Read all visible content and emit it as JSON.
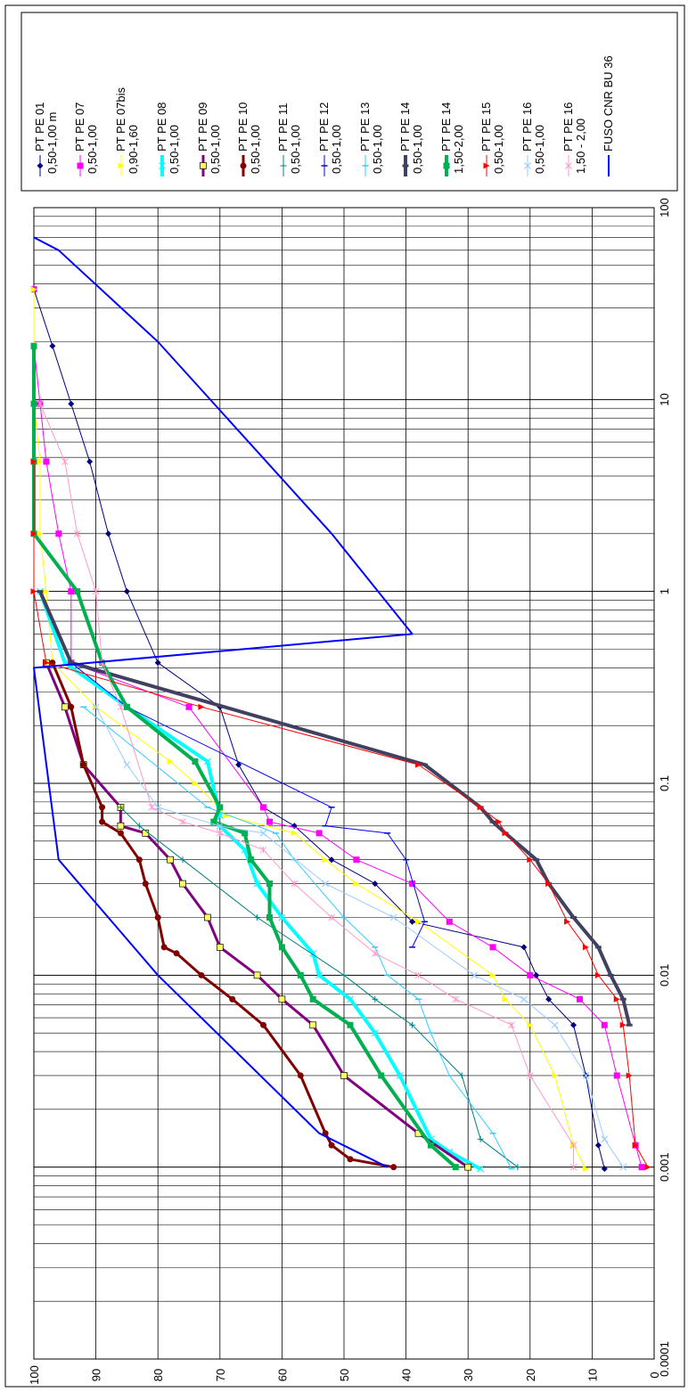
{
  "chart_data": {
    "type": "line",
    "orientation": "rotated-90-ccw",
    "title": "",
    "xlabel": "",
    "ylabel": "",
    "xscale": "log",
    "xlim": [
      0.0001,
      100
    ],
    "ylim": [
      0,
      100
    ],
    "x_tick_labels": [
      "0.0001",
      "0.001",
      "0.01",
      "0.1",
      "1",
      "10",
      "100"
    ],
    "y_tick_labels": [
      "0",
      "10",
      "20",
      "30",
      "40",
      "50",
      "60",
      "70",
      "80",
      "90",
      "100"
    ],
    "grid": true,
    "legend_position": "right",
    "series": [
      {
        "name": "PT PE 01",
        "sub": "0,50-1,00 m",
        "color": "#000080",
        "width": 1,
        "marker": "diamond",
        "x": [
          0.00098,
          0.0013,
          0.003,
          0.0055,
          0.0075,
          0.01,
          0.014,
          0.019,
          0.03,
          0.04,
          0.06,
          0.075,
          0.125,
          0.25,
          0.425,
          1,
          2,
          4.75,
          9.5,
          19,
          37.5
        ],
        "y": [
          8,
          9,
          11,
          13,
          17,
          19,
          21,
          39,
          45,
          52,
          58,
          63,
          67,
          70,
          80,
          85,
          88,
          91,
          94,
          97,
          100
        ]
      },
      {
        "name": "PT PE 07",
        "sub": "0,50-1,00",
        "color": "#FF00FF",
        "width": 1,
        "marker": "square",
        "x": [
          0.001,
          0.0013,
          0.003,
          0.0055,
          0.0075,
          0.01,
          0.014,
          0.019,
          0.03,
          0.04,
          0.055,
          0.063,
          0.075,
          0.25,
          0.425,
          1,
          2,
          4.75,
          9.5,
          19,
          37.5
        ],
        "y": [
          2,
          3,
          6,
          8,
          12,
          20,
          26,
          33,
          39,
          48,
          54,
          62,
          63,
          75,
          94,
          94,
          96,
          98,
          99,
          100,
          100
        ]
      },
      {
        "name": "PT PE 07bis",
        "sub": "0,90-1,60",
        "color": "#FFFF00",
        "width": 1,
        "marker": "triangle",
        "x": [
          0.00098,
          0.0013,
          0.003,
          0.0055,
          0.0075,
          0.01,
          0.019,
          0.03,
          0.04,
          0.055,
          0.068,
          0.1,
          0.13,
          0.25,
          0.425,
          1,
          2,
          4.75,
          9.5,
          19,
          37.5
        ],
        "y": [
          11,
          13,
          16,
          20,
          24,
          26,
          38,
          48,
          53,
          58,
          69,
          74,
          78,
          90,
          97,
          98,
          99,
          99,
          100,
          100,
          100
        ]
      },
      {
        "name": "PT PE 08",
        "sub": "0,50-1,00",
        "color": "#00FFFF",
        "width": 4,
        "marker": "x",
        "x": [
          0.00098,
          0.0012,
          0.0014,
          0.003,
          0.005,
          0.0075,
          0.01,
          0.013,
          0.02,
          0.03,
          0.045,
          0.06,
          0.063,
          0.068,
          0.13,
          0.25,
          0.425,
          1
        ],
        "y": [
          28,
          33,
          36,
          41,
          45,
          49,
          54,
          55,
          60,
          64,
          66,
          70,
          71,
          70,
          72,
          85,
          95,
          99
        ]
      },
      {
        "name": "PT PE 09",
        "sub": "0,50-1,00",
        "color": "#800080",
        "width": 3,
        "marker": "square-yellow",
        "x": [
          0.001,
          0.0015,
          0.003,
          0.0055,
          0.0075,
          0.01,
          0.014,
          0.02,
          0.03,
          0.04,
          0.055,
          0.06,
          0.075,
          0.125,
          0.25,
          0.425
        ],
        "y": [
          30,
          38,
          50,
          55,
          60,
          64,
          70,
          72,
          76,
          78,
          82,
          86,
          86,
          92,
          95,
          98
        ]
      },
      {
        "name": "PT PE 10",
        "sub": "0,50-1,00",
        "color": "#800000",
        "width": 3,
        "marker": "circle",
        "x": [
          0.001,
          0.0011,
          0.0013,
          0.0015,
          0.003,
          0.0055,
          0.0075,
          0.01,
          0.013,
          0.014,
          0.02,
          0.03,
          0.04,
          0.055,
          0.063,
          0.075,
          0.125,
          0.25,
          0.425
        ],
        "y": [
          42,
          49,
          52,
          53,
          57,
          63,
          68,
          73,
          77,
          79,
          80,
          82,
          83,
          86,
          89,
          89,
          92,
          94,
          97
        ]
      },
      {
        "name": "PT PE 11",
        "sub": "0,50-1,00",
        "color": "#008080",
        "width": 1,
        "marker": "plus",
        "x": [
          0.001,
          0.0014,
          0.003,
          0.0055,
          0.0075,
          0.01,
          0.02,
          0.04,
          0.06,
          0.075
        ],
        "y": [
          22,
          28,
          31,
          39,
          45,
          50,
          64,
          76,
          83,
          86
        ]
      },
      {
        "name": "PT PE 12",
        "sub": "0,50-1,00",
        "color": "#0000FF",
        "width": 1,
        "marker": "tick",
        "x": [
          0.014,
          0.019,
          0.04,
          0.055,
          0.06,
          0.075,
          0.25,
          0.425
        ],
        "y": [
          39,
          37,
          40,
          43,
          53,
          52,
          85,
          94
        ]
      },
      {
        "name": "PT PE 13",
        "sub": "0,50-1,00",
        "color": "#33CCFF",
        "width": 1,
        "marker": "tick",
        "x": [
          0.00098,
          0.0015,
          0.003,
          0.005,
          0.0075,
          0.01,
          0.014,
          0.02,
          0.04,
          0.055,
          0.075,
          0.25
        ],
        "y": [
          23,
          26,
          33,
          36,
          38,
          43,
          45,
          50,
          58,
          61,
          72,
          92
        ]
      },
      {
        "name": "PT PE 14",
        "sub": "0,50-1,00",
        "color": "#404060",
        "width": 4,
        "marker": "bar",
        "x": [
          0.0055,
          0.0075,
          0.01,
          0.014,
          0.02,
          0.03,
          0.04,
          0.055,
          0.063,
          0.075,
          0.125,
          0.425,
          1
        ],
        "y": [
          4,
          5,
          7,
          9,
          13,
          17,
          19,
          24,
          26,
          28,
          37,
          94,
          99
        ]
      },
      {
        "name": "PT PE 14",
        "sub": "1,50-2,00",
        "color": "#00B050",
        "width": 4,
        "marker": "square",
        "x": [
          0.001,
          0.0013,
          0.003,
          0.0055,
          0.0075,
          0.01,
          0.014,
          0.02,
          0.03,
          0.04,
          0.055,
          0.063,
          0.075,
          0.13,
          0.25,
          0.425,
          1,
          2,
          4.75,
          9.5,
          19
        ],
        "y": [
          32,
          36,
          44,
          49,
          55,
          57,
          60,
          62,
          62,
          65,
          66,
          71,
          70,
          74,
          85,
          89,
          93,
          100,
          100,
          100,
          100
        ]
      },
      {
        "name": "PT PE 15",
        "sub": "0,50-1,00",
        "color": "#FF0000",
        "width": 1,
        "marker": "triangle",
        "x": [
          0.001,
          0.0013,
          0.003,
          0.0055,
          0.0075,
          0.01,
          0.014,
          0.019,
          0.03,
          0.04,
          0.055,
          0.063,
          0.075,
          0.125,
          0.25,
          0.425,
          1,
          2,
          4.75
        ],
        "y": [
          1,
          3,
          4,
          5,
          6,
          9,
          11,
          14,
          17,
          20,
          24,
          25,
          28,
          38,
          73,
          98,
          100,
          100,
          100
        ]
      },
      {
        "name": "PT PE 16",
        "sub": "0,50-1,00",
        "color": "#99CCFF",
        "width": 1,
        "marker": "x",
        "x": [
          0.001,
          0.0014,
          0.003,
          0.0055,
          0.0075,
          0.01,
          0.02,
          0.03,
          0.055,
          0.06,
          0.075,
          0.125,
          0.25
        ],
        "y": [
          5,
          8,
          11,
          16,
          21,
          29,
          42,
          53,
          63,
          70,
          80,
          85,
          90
        ]
      },
      {
        "name": "PT PE 16",
        "sub": "1,50 - 2,00",
        "color": "#FF99CC",
        "width": 1,
        "marker": "star",
        "x": [
          0.001,
          0.0013,
          0.003,
          0.0055,
          0.0075,
          0.01,
          0.013,
          0.02,
          0.03,
          0.045,
          0.055,
          0.063,
          0.075,
          0.25,
          0.425,
          1,
          2,
          4.75,
          9.5
        ],
        "y": [
          13,
          13,
          20,
          23,
          32,
          38,
          45,
          52,
          58,
          63,
          70,
          76,
          81,
          86,
          89,
          90,
          93,
          95,
          99
        ]
      },
      {
        "name": "FUSO CNR BU 36",
        "sub": "",
        "color": "#0000FF",
        "width": 2,
        "marker": "none",
        "x": [
          0.001,
          0.0015,
          0.01,
          0.04,
          0.4,
          0.6,
          2,
          20,
          60,
          70
        ],
        "y": [
          43,
          54,
          80,
          96,
          100,
          39,
          52,
          80,
          96,
          100
        ]
      }
    ]
  }
}
